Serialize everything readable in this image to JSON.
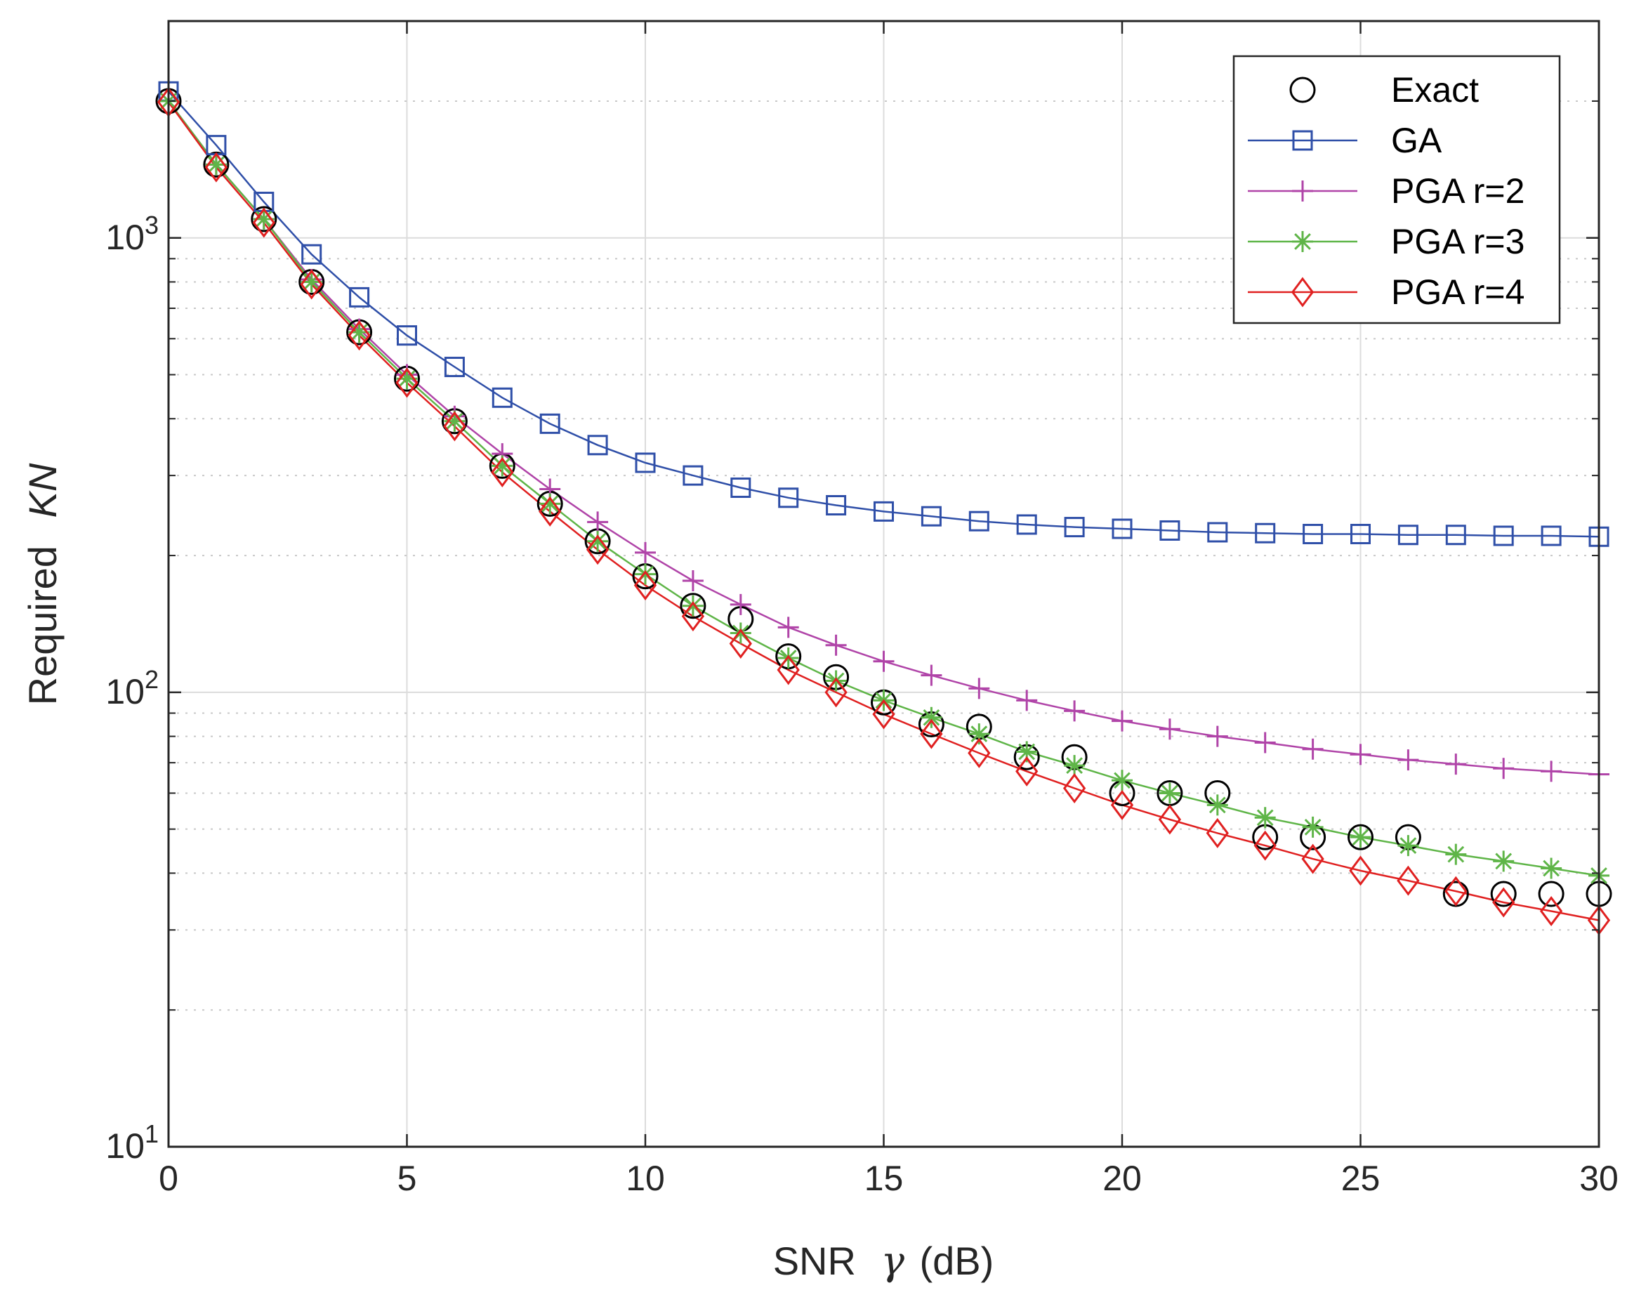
{
  "chart_data": {
    "type": "line",
    "title": "",
    "xlabel": {
      "prefix": "SNR",
      "symbol": "γ",
      "suffix": "(dB)"
    },
    "ylabel": {
      "prefix": "Required",
      "symbol": "KN"
    },
    "xlim": [
      0,
      30
    ],
    "ylim": [
      10,
      3000
    ],
    "yscale": "log",
    "x_ticks": [
      "0",
      "5",
      "10",
      "15",
      "20",
      "25",
      "30"
    ],
    "y_ticks": [
      {
        "base": "10",
        "exp": "1",
        "value": 10
      },
      {
        "base": "10",
        "exp": "2",
        "value": 100
      },
      {
        "base": "10",
        "exp": "3",
        "value": 1000
      }
    ],
    "grid": true,
    "legend_position": "top-right",
    "x": [
      0,
      1,
      2,
      3,
      4,
      5,
      6,
      7,
      8,
      9,
      10,
      11,
      12,
      13,
      14,
      15,
      16,
      17,
      18,
      19,
      20,
      21,
      22,
      23,
      24,
      25,
      26,
      27,
      28,
      29,
      30
    ],
    "series": [
      {
        "name": "Exact",
        "color": "#000000",
        "marker": "circle",
        "line": false,
        "values": [
          2000,
          1450,
          1100,
          800,
          620,
          490,
          395,
          315,
          260,
          215,
          180,
          155,
          145,
          120,
          108,
          95,
          85,
          84,
          72,
          72,
          60,
          60,
          60,
          48,
          48,
          48,
          48,
          36,
          36,
          36,
          36
        ]
      },
      {
        "name": "GA",
        "color": "#2f4fa8",
        "marker": "square",
        "line": true,
        "values": [
          2100,
          1600,
          1200,
          920,
          740,
          610,
          520,
          445,
          390,
          350,
          320,
          300,
          282,
          268,
          258,
          250,
          244,
          238,
          234,
          231,
          229,
          227,
          225,
          224,
          223,
          223,
          222,
          222,
          221,
          221,
          220
        ]
      },
      {
        "name": "PGA r=2",
        "color": "#b044a8",
        "marker": "plus",
        "line": true,
        "values": [
          2000,
          1450,
          1100,
          810,
          630,
          500,
          405,
          335,
          280,
          237,
          203,
          176,
          156,
          139,
          127,
          117,
          109,
          102,
          96,
          91,
          86.5,
          83,
          80,
          77.5,
          75,
          73,
          71,
          69.5,
          68,
          67,
          66
        ]
      },
      {
        "name": "PGA r=3",
        "color": "#5fb548",
        "marker": "asterisk",
        "line": true,
        "values": [
          2000,
          1450,
          1100,
          800,
          620,
          490,
          395,
          315,
          260,
          215,
          182,
          155,
          135,
          119,
          106,
          96,
          88,
          81,
          74,
          69,
          64,
          60,
          56.5,
          53,
          50.5,
          48,
          46,
          44,
          42.5,
          41,
          39.5
        ]
      },
      {
        "name": "PGA r=4",
        "color": "#e02020",
        "marker": "diamond",
        "line": true,
        "values": [
          1990,
          1430,
          1080,
          790,
          610,
          480,
          385,
          305,
          250,
          206,
          172,
          147,
          128,
          112,
          100,
          89.5,
          81,
          73.5,
          67,
          61.5,
          56.5,
          52.5,
          49,
          46,
          43,
          40.5,
          38.5,
          36.5,
          34.5,
          33,
          31.5
        ]
      }
    ]
  }
}
